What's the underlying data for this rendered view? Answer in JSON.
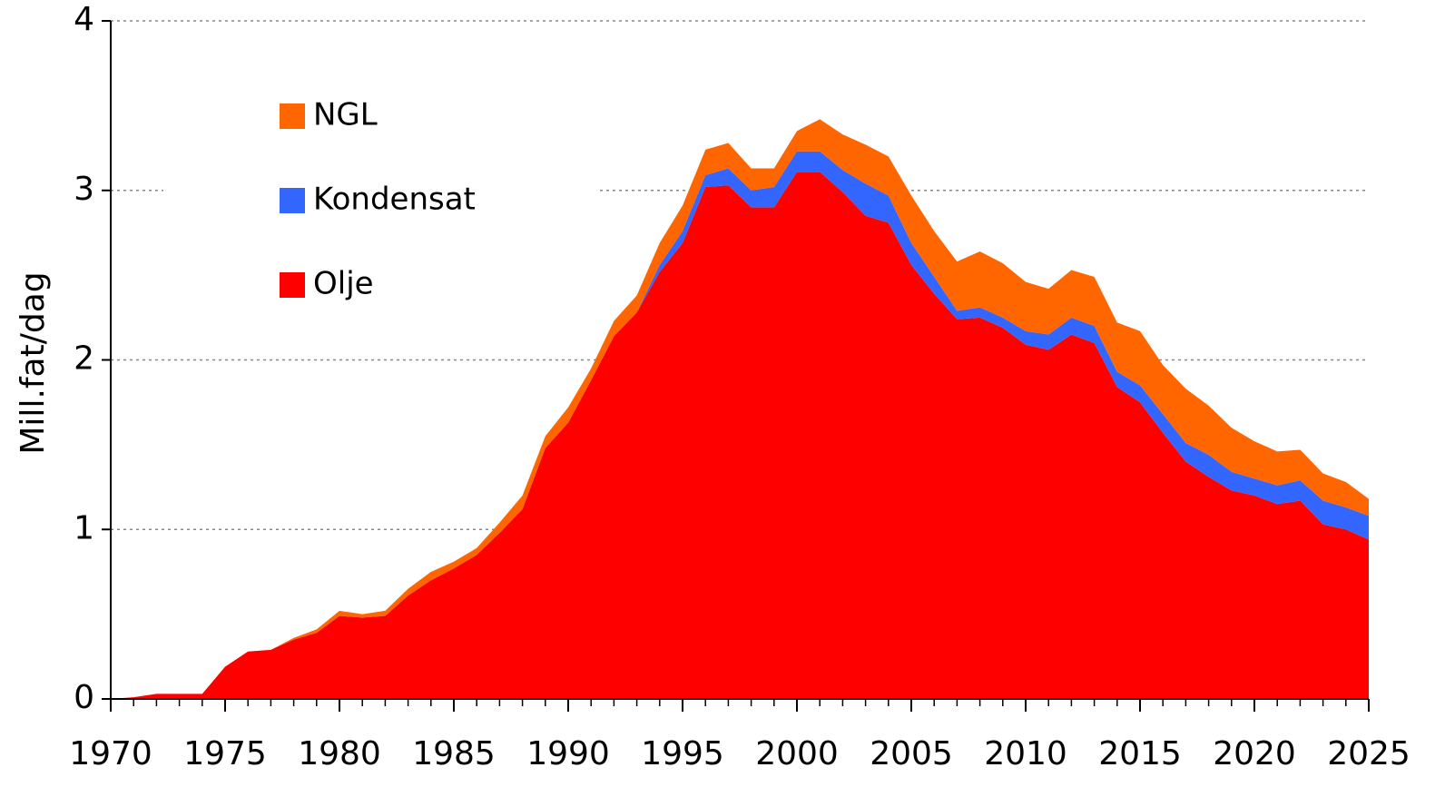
{
  "chart_data": {
    "type": "stacked_area",
    "y_label": "Mill.fat/dag",
    "x": [
      1970,
      1971,
      1972,
      1973,
      1974,
      1975,
      1976,
      1977,
      1978,
      1979,
      1980,
      1981,
      1982,
      1983,
      1984,
      1985,
      1986,
      1987,
      1988,
      1989,
      1990,
      1991,
      1992,
      1993,
      1994,
      1995,
      1996,
      1997,
      1998,
      1999,
      2000,
      2001,
      2002,
      2003,
      2004,
      2005,
      2006,
      2007,
      2008,
      2009,
      2010,
      2011,
      2012,
      2013,
      2014,
      2015,
      2016,
      2017,
      2018,
      2019,
      2020,
      2021,
      2022,
      2023,
      2024,
      2025
    ],
    "series": [
      {
        "name": "Olje",
        "color": "#ff0000",
        "values": [
          0,
          0.01,
          0.03,
          0.03,
          0.03,
          0.19,
          0.28,
          0.29,
          0.35,
          0.39,
          0.49,
          0.48,
          0.49,
          0.61,
          0.7,
          0.77,
          0.85,
          0.98,
          1.12,
          1.48,
          1.63,
          1.88,
          2.14,
          2.28,
          2.52,
          2.69,
          3.02,
          3.03,
          2.9,
          2.9,
          3.11,
          3.11,
          2.99,
          2.85,
          2.81,
          2.56,
          2.39,
          2.24,
          2.25,
          2.19,
          2.09,
          2.06,
          2.15,
          2.1,
          1.84,
          1.75,
          1.57,
          1.4,
          1.31,
          1.23,
          1.2,
          1.15,
          1.17,
          1.03,
          1.0,
          0.94
        ]
      },
      {
        "name": "Kondensat",
        "color": "#3366ff",
        "values": [
          0,
          0,
          0,
          0,
          0,
          0,
          0,
          0,
          0,
          0,
          0,
          0,
          0,
          0,
          0,
          0,
          0,
          0,
          0,
          0,
          0,
          0,
          0,
          0,
          0.04,
          0.07,
          0.07,
          0.1,
          0.1,
          0.12,
          0.12,
          0.12,
          0.13,
          0.19,
          0.16,
          0.13,
          0.1,
          0.05,
          0.06,
          0.06,
          0.08,
          0.09,
          0.1,
          0.1,
          0.09,
          0.1,
          0.11,
          0.11,
          0.13,
          0.11,
          0.1,
          0.11,
          0.12,
          0.14,
          0.13,
          0.14
        ]
      },
      {
        "name": "NGL",
        "color": "#ff6600",
        "values": [
          0,
          0,
          0,
          0,
          0,
          0,
          0,
          0,
          0.01,
          0.02,
          0.03,
          0.02,
          0.03,
          0.04,
          0.05,
          0.04,
          0.04,
          0.06,
          0.08,
          0.07,
          0.09,
          0.07,
          0.09,
          0.1,
          0.13,
          0.15,
          0.15,
          0.15,
          0.13,
          0.11,
          0.12,
          0.19,
          0.21,
          0.23,
          0.23,
          0.28,
          0.27,
          0.29,
          0.33,
          0.32,
          0.29,
          0.27,
          0.28,
          0.29,
          0.29,
          0.32,
          0.29,
          0.32,
          0.29,
          0.26,
          0.22,
          0.2,
          0.18,
          0.16,
          0.15,
          0.1
        ]
      }
    ],
    "xlim": [
      1970,
      2025
    ],
    "xticks": [
      1970,
      1975,
      1980,
      1985,
      1990,
      1995,
      2000,
      2005,
      2010,
      2015,
      2020,
      2025
    ],
    "ylim": [
      0,
      4
    ],
    "yticks": [
      0,
      1,
      2,
      3,
      4
    ],
    "grid": true
  }
}
